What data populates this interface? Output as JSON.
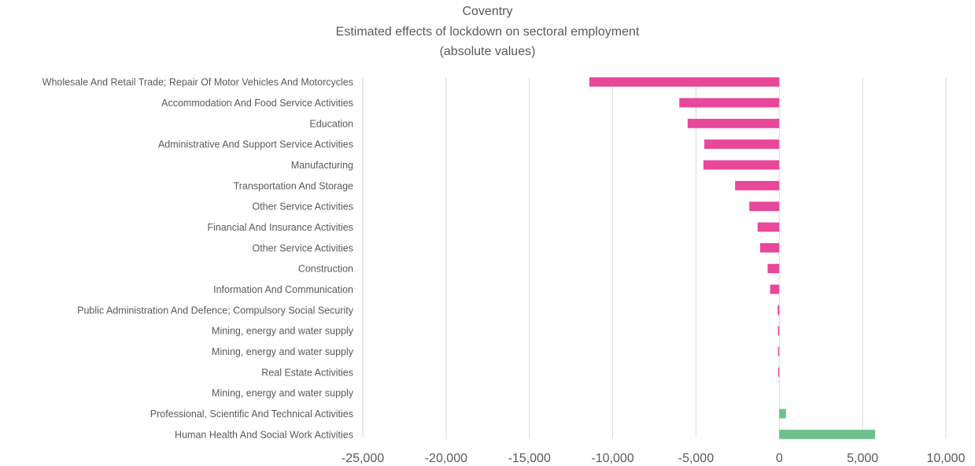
{
  "chart_data": {
    "type": "bar",
    "orientation": "horizontal",
    "title": "Coventry",
    "subtitle": "Estimated effects of lockdown on sectoral employment",
    "subtitle2": "(absolute values)",
    "xlim": [
      -25000,
      10000
    ],
    "x_ticks": [
      "-25,000",
      "-20,000",
      "-15,000",
      "-10,000",
      "-5,000",
      "0",
      "5,000",
      "10,000"
    ],
    "x_tick_values": [
      -25000,
      -20000,
      -15000,
      -10000,
      -5000,
      0,
      5000,
      10000
    ],
    "grid": "vertical",
    "colors": {
      "negative": "#E8479A",
      "positive": "#6CC08A",
      "grid": "#D9D9D9"
    },
    "categories": [
      "Wholesale And Retail Trade; Repair Of Motor Vehicles And Motorcycles",
      "Accommodation And Food Service Activities",
      "Education",
      "Administrative And Support Service Activities",
      "Manufacturing",
      "Transportation And Storage",
      "Other Service Activities",
      "Financial And Insurance Activities",
      "Other Service Activities",
      "Construction",
      "Information And Communication",
      "Public Administration And Defence; Compulsory Social Security",
      "Mining, energy and water supply",
      "Mining, energy and water supply",
      "Real Estate Activities",
      "Mining, energy and water supply",
      "Professional, Scientific And Technical Activities",
      "Human Health And Social Work Activities"
    ],
    "values": [
      -11400,
      -6000,
      -5500,
      -4500,
      -4550,
      -2650,
      -1800,
      -1300,
      -1150,
      -700,
      -550,
      -100,
      -80,
      -50,
      -30,
      0,
      400,
      5750
    ]
  }
}
